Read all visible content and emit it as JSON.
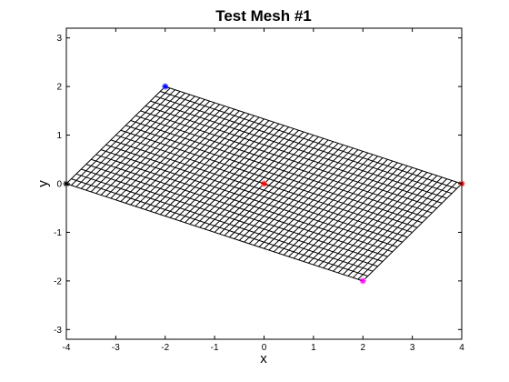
{
  "chart_data": {
    "type": "mesh",
    "title": "Test Mesh #1",
    "xlabel": "x",
    "ylabel": "y",
    "xlim": [
      -4,
      4
    ],
    "ylim": [
      -3.2,
      3.2
    ],
    "xticks": [
      -4,
      -3,
      -2,
      -1,
      0,
      1,
      2,
      3,
      4
    ],
    "yticks": [
      -3,
      -2,
      -1,
      0,
      1,
      2,
      3
    ],
    "grid": false,
    "mesh": {
      "corners": [
        [
          -4,
          0
        ],
        [
          2,
          -2
        ],
        [
          4,
          0
        ],
        [
          -2,
          2
        ]
      ],
      "divisions_u": 60,
      "divisions_v": 20,
      "line_color": "#000000"
    },
    "markers": [
      {
        "x": -4,
        "y": 0,
        "color": "#000000",
        "symbol": "*"
      },
      {
        "x": -2,
        "y": 2,
        "color": "#0000ff",
        "symbol": "*"
      },
      {
        "x": 4,
        "y": 0,
        "color": "#ff0000",
        "symbol": "*"
      },
      {
        "x": 2,
        "y": -2,
        "color": "#ff00ff",
        "symbol": "*"
      },
      {
        "x": 0,
        "y": 0,
        "color": "#ff0000",
        "symbol": "*"
      }
    ]
  }
}
